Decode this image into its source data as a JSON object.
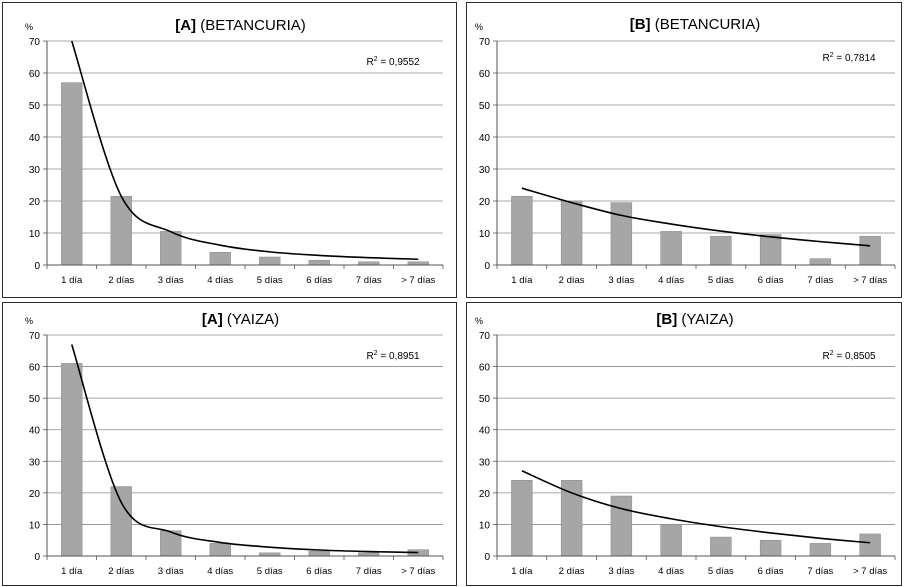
{
  "chart_data": [
    {
      "type": "bar",
      "title_bold": "[A]",
      "title_rest": " (BETANCURIA)",
      "ylabel": "%",
      "ylim": [
        0,
        70
      ],
      "yticks": [
        "0",
        "10",
        "20",
        "30",
        "40",
        "50",
        "60",
        "70"
      ],
      "categories": [
        "1 día",
        "2 días",
        "3 días",
        "4 días",
        "5 días",
        "6 días",
        "7 días",
        "> 7 días"
      ],
      "values": [
        57,
        21.5,
        10.5,
        4,
        2.5,
        1.5,
        1,
        1
      ],
      "trend_values": [
        70,
        21.5,
        10.4,
        6.2,
        4.1,
        3.0,
        2.3,
        1.8
      ],
      "r2_label": "R",
      "r2_value": " = 0,9552",
      "bar_color": "#a6a6a6",
      "grid": true
    },
    {
      "type": "bar",
      "title_bold": "[B]",
      "title_rest": " (BETANCURIA)",
      "ylabel": "%",
      "ylim": [
        0,
        70
      ],
      "yticks": [
        "0",
        "10",
        "20",
        "30",
        "40",
        "50",
        "60",
        "70"
      ],
      "categories": [
        "1 día",
        "2 días",
        "3 días",
        "4 días",
        "5 días",
        "6 días",
        "7 días",
        "> 7 días"
      ],
      "values": [
        21.5,
        20,
        19.5,
        10.5,
        9,
        9.5,
        2,
        9
      ],
      "trend_values": [
        24,
        19.5,
        15.5,
        12.8,
        10.6,
        8.8,
        7.3,
        6.0
      ],
      "r2_label": "R",
      "r2_value": " = 0,7814",
      "bar_color": "#a6a6a6",
      "grid": true
    },
    {
      "type": "bar",
      "title_bold": "[A]",
      "title_rest": " (YAIZA)",
      "ylabel": "%",
      "ylim": [
        0,
        70
      ],
      "yticks": [
        "0",
        "10",
        "20",
        "30",
        "40",
        "50",
        "60",
        "70"
      ],
      "categories": [
        "1 día",
        "2 días",
        "3 días",
        "4 días",
        "5 días",
        "6 días",
        "7 días",
        "> 7 días"
      ],
      "values": [
        61,
        22,
        8,
        4,
        1,
        1.5,
        1,
        2
      ],
      "trend_values": [
        67,
        17,
        7.6,
        4.3,
        2.8,
        1.9,
        1.4,
        1.1
      ],
      "r2_label": "R",
      "r2_value": " = 0,8951",
      "bar_color": "#a6a6a6",
      "grid": true
    },
    {
      "type": "bar",
      "title_bold": "[B]",
      "title_rest": " (YAIZA)",
      "ylabel": "%",
      "ylim": [
        0,
        70
      ],
      "yticks": [
        "0",
        "10",
        "20",
        "30",
        "40",
        "50",
        "60",
        "70"
      ],
      "categories": [
        "1 día",
        "2 días",
        "3 días",
        "4 días",
        "5 días",
        "6 días",
        "7 días",
        "> 7 días"
      ],
      "values": [
        24,
        24,
        19,
        10,
        6,
        5,
        4,
        7
      ],
      "trend_values": [
        27,
        20,
        15,
        11.8,
        9.3,
        7.3,
        5.6,
        4.2
      ],
      "r2_label": "R",
      "r2_value": " = 0,8505",
      "bar_color": "#a6a6a6",
      "grid": true
    }
  ]
}
